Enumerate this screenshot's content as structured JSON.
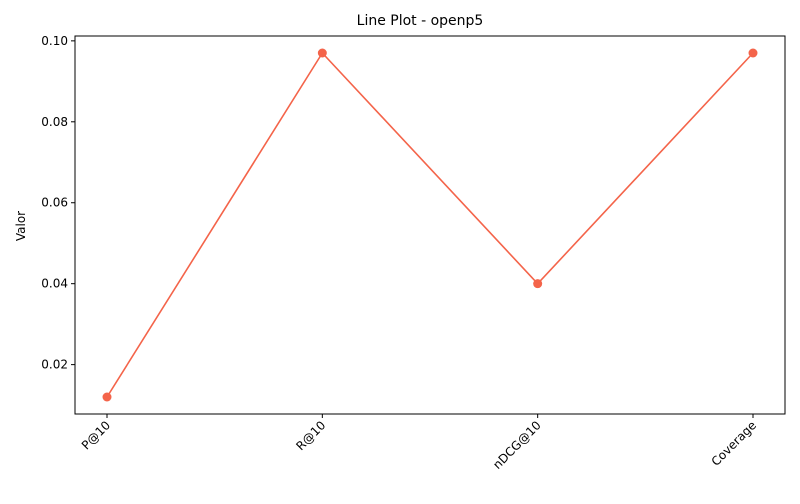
{
  "chart_data": {
    "type": "line",
    "title": "Line Plot - openp5",
    "xlabel": "",
    "ylabel": "Valor",
    "categories": [
      "P@10",
      "R@10",
      "nDCG@10",
      "Coverage"
    ],
    "series": [
      {
        "values": [
          0.012,
          0.097,
          0.04,
          0.097
        ],
        "color": "#f4644a"
      }
    ],
    "ylim": [
      0.0078,
      0.1012
    ],
    "yticks": [
      0.02,
      0.04,
      0.06,
      0.08,
      0.1
    ],
    "ytick_labels": [
      "0.02",
      "0.04",
      "0.06",
      "0.08",
      "0.10"
    ],
    "marker": "circle",
    "grid": false,
    "legend": "none"
  }
}
